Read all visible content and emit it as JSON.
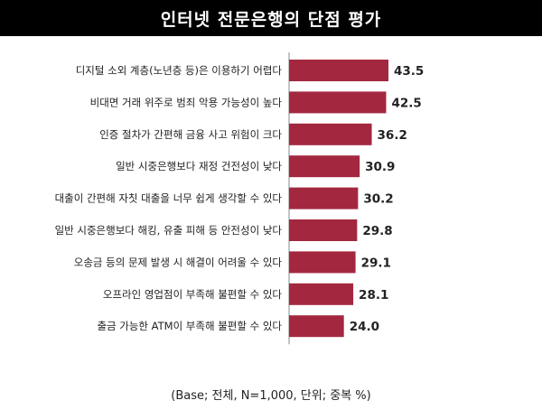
{
  "title": "인터넷 전문은행의 단점 평가",
  "footnote": "(Base; 전체, N=1,000, 단위; 중복 %)",
  "colors": {
    "bar": "#a3283f",
    "axis": "#888888",
    "title_bg": "#000000"
  },
  "chart_data": {
    "type": "bar",
    "orientation": "horizontal",
    "title": "인터넷 전문은행의 단점 평가",
    "categories": [
      "디지털 소외 계층(노년층 등)은 이용하기 어렵다",
      "비대면 거래 위주로 범죄 악용 가능성이 높다",
      "인증 절차가 간편해 금융 사고 위험이 크다",
      "일반 시중은행보다 재정 건전성이 낮다",
      "대출이 간편해 자칫 대출을 너무 쉽게 생각할 수 있다",
      "일반 시중은행보다 해킹, 유출 피해 등 안전성이 낮다",
      "오송금 등의 문제 발생 시 해결이 어려울 수 있다",
      "오프라인 영업점이 부족해 불편할 수 있다",
      "출금 가능한 ATM이 부족해 불편할 수 있다"
    ],
    "values": [
      43.5,
      42.5,
      36.2,
      30.9,
      30.2,
      29.8,
      29.1,
      28.1,
      24.0
    ],
    "value_labels": [
      "43.5",
      "42.5",
      "36.2",
      "30.9",
      "30.2",
      "29.8",
      "29.1",
      "28.1",
      "24.0"
    ],
    "grid": false,
    "legend": "none"
  }
}
